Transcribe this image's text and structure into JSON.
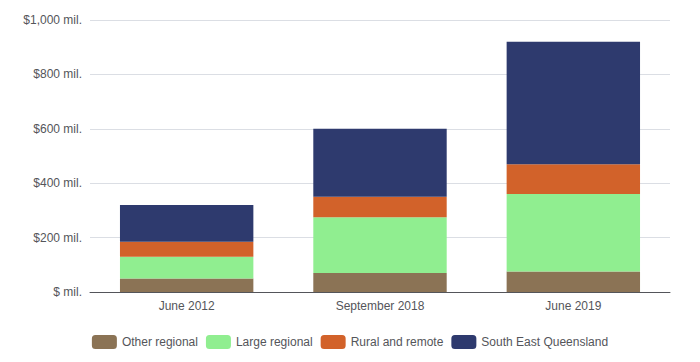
{
  "chart_data": {
    "type": "bar",
    "stacked": true,
    "categories": [
      "June 2012",
      "September 2018",
      "June 2019"
    ],
    "series": [
      {
        "name": "Other regional",
        "color": "#8B7355",
        "values": [
          50,
          70,
          75
        ]
      },
      {
        "name": "Large regional",
        "color": "#90EE90",
        "values": [
          80,
          205,
          285
        ]
      },
      {
        "name": "Rural and remote",
        "color": "#D2622A",
        "values": [
          55,
          75,
          110
        ]
      },
      {
        "name": "South East Queensland",
        "color": "#2E3A6E",
        "values": [
          135,
          250,
          450
        ]
      }
    ],
    "ylim": [
      0,
      1000
    ],
    "yticks": [
      {
        "value": 0,
        "label": "$ mil."
      },
      {
        "value": 200,
        "label": "$200 mil."
      },
      {
        "value": 400,
        "label": "$400 mil."
      },
      {
        "value": 600,
        "label": "$600 mil."
      },
      {
        "value": 800,
        "label": "$800 mil."
      },
      {
        "value": 1000,
        "label": "$1,000 mil."
      }
    ],
    "grid": true,
    "legend": "bottom"
  }
}
